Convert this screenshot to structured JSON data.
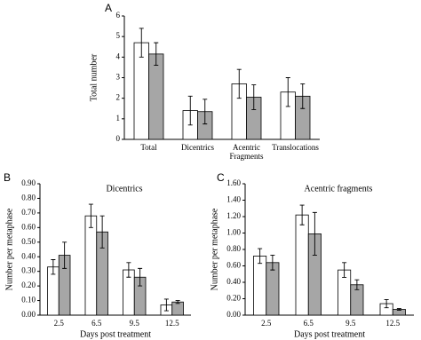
{
  "chart_data": [
    {
      "type": "bar",
      "panel_label": "A",
      "y_label": "Total number",
      "categories": [
        "Total",
        "Dicentrics",
        "Acentric Fragments",
        "Translocations"
      ],
      "series": [
        {
          "color": "#ffffff",
          "values": [
            4.7,
            1.4,
            2.7,
            2.3
          ],
          "errors": [
            0.7,
            0.7,
            0.7,
            0.7
          ]
        },
        {
          "color": "#a6a6a6",
          "values": [
            4.15,
            1.35,
            2.05,
            2.1
          ],
          "errors": [
            0.55,
            0.6,
            0.6,
            0.6
          ]
        }
      ],
      "ylim": [
        0,
        6
      ],
      "yticks": [
        0,
        1,
        2,
        3,
        4,
        5,
        6
      ]
    },
    {
      "type": "bar",
      "panel_label": "B",
      "title": "Dicentrics",
      "y_label": "Number per metaphase",
      "x_label": "Days post treatment",
      "categories": [
        "2.5",
        "6.5",
        "9.5",
        "12.5"
      ],
      "series": [
        {
          "color": "#ffffff",
          "values": [
            0.33,
            0.68,
            0.31,
            0.07
          ],
          "errors": [
            0.05,
            0.08,
            0.05,
            0.04
          ]
        },
        {
          "color": "#a6a6a6",
          "values": [
            0.41,
            0.57,
            0.26,
            0.09
          ],
          "errors": [
            0.09,
            0.11,
            0.06,
            0.01
          ]
        }
      ],
      "ylim": [
        0,
        0.9
      ],
      "yticks": [
        {
          "value": 0,
          "label": "0.00"
        },
        {
          "value": 0.1,
          "label": "0.10"
        },
        {
          "value": 0.2,
          "label": "0.20"
        },
        {
          "value": 0.3,
          "label": "0.30"
        },
        {
          "value": 0.4,
          "label": "0.40"
        },
        {
          "value": 0.5,
          "label": "0.50"
        },
        {
          "value": 0.6,
          "label": "0.60"
        },
        {
          "value": 0.7,
          "label": "0.70"
        },
        {
          "value": 0.8,
          "label": "0.80"
        },
        {
          "value": 0.9,
          "label": "0.90"
        }
      ]
    },
    {
      "type": "bar",
      "panel_label": "C",
      "title": "Acentric fragments",
      "y_label": "Number per metaphase",
      "x_label": "Days post treatment",
      "categories": [
        "2.5",
        "6.5",
        "9.5",
        "12.5"
      ],
      "series": [
        {
          "color": "#ffffff",
          "values": [
            0.72,
            1.22,
            0.55,
            0.14
          ],
          "errors": [
            0.09,
            0.12,
            0.09,
            0.05
          ]
        },
        {
          "color": "#a6a6a6",
          "values": [
            0.64,
            0.99,
            0.37,
            0.07
          ],
          "errors": [
            0.09,
            0.26,
            0.06,
            0.01
          ]
        }
      ],
      "ylim": [
        0,
        1.6
      ],
      "yticks": [
        {
          "value": 0,
          "label": "0.00"
        },
        {
          "value": 0.2,
          "label": "0.20"
        },
        {
          "value": 0.4,
          "label": "0.40"
        },
        {
          "value": 0.6,
          "label": "0.60"
        },
        {
          "value": 0.8,
          "label": "0.80"
        },
        {
          "value": 1.0,
          "label": "1.00"
        },
        {
          "value": 1.2,
          "label": "1.20"
        },
        {
          "value": 1.4,
          "label": "1.40"
        },
        {
          "value": 1.6,
          "label": "1.60"
        }
      ]
    }
  ]
}
